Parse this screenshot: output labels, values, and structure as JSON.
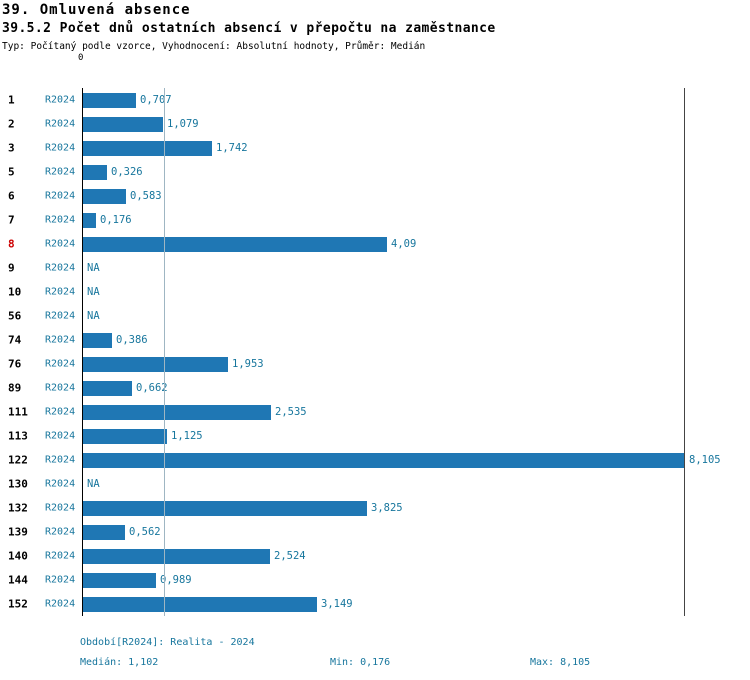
{
  "colors": {
    "bar": "#1f77b4",
    "accent": "#17769d",
    "highlight": "#cc0000",
    "median_line": "#9fb6c3"
  },
  "header": {
    "title": "39. Omluvená absence",
    "subtitle": "39.5.2 Počet dnů ostatních absencí v přepočtu na zaměstnance",
    "meta": "Typ: Počítaný podle vzorce, Vyhodnocení: Absolutní hodnoty, Průměr: Medián"
  },
  "chart_data": {
    "type": "bar",
    "orientation": "horizontal",
    "title": "39.5.2 Počet dnů ostatních absencí v přepočtu na zaměstnance",
    "series_label": "R2024",
    "axis_zero_label": "0",
    "categories": [
      "1",
      "2",
      "3",
      "5",
      "6",
      "7",
      "8",
      "9",
      "10",
      "56",
      "74",
      "76",
      "89",
      "111",
      "113",
      "122",
      "130",
      "132",
      "139",
      "140",
      "144",
      "152"
    ],
    "values": [
      0.707,
      1.079,
      1.742,
      0.326,
      0.583,
      0.176,
      4.09,
      null,
      null,
      null,
      0.386,
      1.953,
      0.662,
      2.535,
      1.125,
      8.105,
      null,
      3.825,
      0.562,
      2.524,
      0.989,
      3.149
    ],
    "value_labels": [
      "0,707",
      "1,079",
      "1,742",
      "0,326",
      "0,583",
      "0,176",
      "4,09",
      "NA",
      "NA",
      "NA",
      "0,386",
      "1,953",
      "0,662",
      "2,535",
      "1,125",
      "8,105",
      "NA",
      "3,825",
      "0,562",
      "2,524",
      "0,989",
      "3,149"
    ],
    "highlighted_category": "8",
    "xlim": [
      0,
      8.105
    ],
    "median": 1.102,
    "grid": "vertical lines at zero, median and max",
    "legend_position": "none"
  },
  "footer": {
    "period": "Období[R2024]: Realita - 2024",
    "median": "Medián: 1,102",
    "min": "Min: 0,176",
    "max": "Max: 8,105"
  }
}
